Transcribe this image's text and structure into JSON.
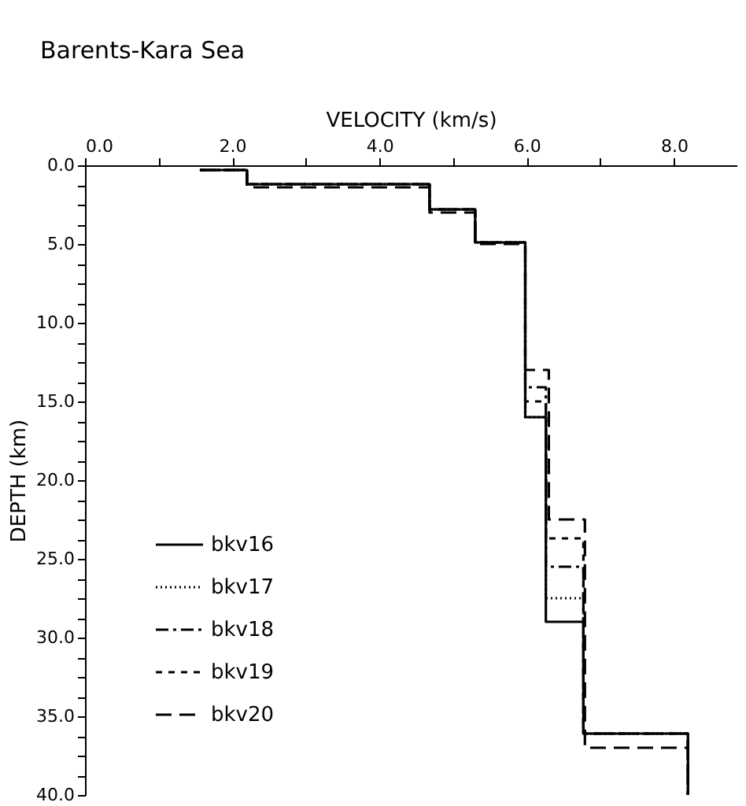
{
  "chart_data": {
    "type": "line",
    "title": "Barents-Kara Sea",
    "xlabel": "VELOCITY (km/s)",
    "ylabel": "DEPTH (km)",
    "xlim": [
      0,
      8.85
    ],
    "ylim": [
      40,
      0
    ],
    "xticks": [
      {
        "value": 0,
        "label": "0.0"
      },
      {
        "value": 1,
        "label": null
      },
      {
        "value": 2,
        "label": "2.0"
      },
      {
        "value": 3,
        "label": null
      },
      {
        "value": 4,
        "label": "4.0"
      },
      {
        "value": 5,
        "label": null
      },
      {
        "value": 6,
        "label": "6.0"
      },
      {
        "value": 7,
        "label": null
      },
      {
        "value": 8,
        "label": "8.0"
      }
    ],
    "yticks": [
      {
        "value": 0,
        "label": "0.0"
      },
      {
        "value": 1.25,
        "label": null
      },
      {
        "value": 2.5,
        "label": null
      },
      {
        "value": 3.75,
        "label": null
      },
      {
        "value": 5,
        "label": "5.0"
      },
      {
        "value": 6.25,
        "label": null
      },
      {
        "value": 7.5,
        "label": null
      },
      {
        "value": 8.75,
        "label": null
      },
      {
        "value": 10,
        "label": "10.0"
      },
      {
        "value": 11.25,
        "label": null
      },
      {
        "value": 12.5,
        "label": null
      },
      {
        "value": 13.75,
        "label": null
      },
      {
        "value": 15,
        "label": "15.0"
      },
      {
        "value": 16.25,
        "label": null
      },
      {
        "value": 17.5,
        "label": null
      },
      {
        "value": 18.75,
        "label": null
      },
      {
        "value": 20,
        "label": "20.0"
      },
      {
        "value": 21.25,
        "label": null
      },
      {
        "value": 22.5,
        "label": null
      },
      {
        "value": 23.75,
        "label": null
      },
      {
        "value": 25,
        "label": "25.0"
      },
      {
        "value": 26.25,
        "label": null
      },
      {
        "value": 27.5,
        "label": null
      },
      {
        "value": 28.75,
        "label": null
      },
      {
        "value": 30,
        "label": "30.0"
      },
      {
        "value": 31.25,
        "label": null
      },
      {
        "value": 32.5,
        "label": null
      },
      {
        "value": 33.75,
        "label": null
      },
      {
        "value": 35,
        "label": "35.0"
      },
      {
        "value": 36.25,
        "label": null
      },
      {
        "value": 37.5,
        "label": null
      },
      {
        "value": 38.75,
        "label": null
      },
      {
        "value": 40,
        "label": "40.0"
      }
    ],
    "grid": false,
    "legend": "bottom left",
    "marker": "none",
    "series": [
      {
        "name": "bkv16",
        "color": "#000000",
        "line_style": "solid",
        "x": [
          1.56,
          2.2,
          2.2,
          4.68,
          4.68,
          5.3,
          5.3,
          5.98,
          5.98,
          6.26,
          6.26,
          6.77,
          6.77,
          8.19,
          8.19
        ],
        "values": [
          0.3,
          0.3,
          1.2,
          1.2,
          2.8,
          2.8,
          4.9,
          4.9,
          16.0,
          16.0,
          29.0,
          29.0,
          36.1,
          36.1,
          40
        ]
      },
      {
        "name": "bkv17",
        "color": "#000000",
        "line_style": "dotted",
        "x": [
          1.56,
          2.2,
          2.2,
          4.68,
          4.68,
          5.3,
          5.3,
          5.98,
          5.98,
          6.26,
          6.26,
          6.77,
          6.77,
          8.19,
          8.19
        ],
        "values": [
          0.3,
          0.3,
          1.2,
          1.2,
          2.8,
          2.8,
          4.9,
          4.9,
          16.0,
          16.0,
          27.5,
          27.5,
          36.1,
          36.1,
          40
        ]
      },
      {
        "name": "bkv18",
        "color": "#000000",
        "line_style": "dashdot",
        "x": [
          1.56,
          2.2,
          2.2,
          4.68,
          4.68,
          5.3,
          5.3,
          5.98,
          5.98,
          6.26,
          6.26,
          6.77,
          6.77,
          8.19,
          8.19
        ],
        "values": [
          0.3,
          0.3,
          1.2,
          1.2,
          2.8,
          2.8,
          4.9,
          4.9,
          14.1,
          14.1,
          25.5,
          25.5,
          36.1,
          36.1,
          40
        ]
      },
      {
        "name": "bkv19",
        "color": "#000000",
        "line_style": "dashed",
        "x": [
          1.56,
          2.2,
          2.2,
          4.68,
          4.68,
          5.3,
          5.3,
          5.98,
          5.98,
          6.26,
          6.26,
          6.77,
          6.77,
          8.19,
          8.19
        ],
        "values": [
          0.3,
          0.3,
          1.2,
          1.2,
          2.8,
          2.8,
          4.9,
          4.9,
          15.0,
          15.0,
          23.7,
          23.7,
          36.1,
          36.1,
          40
        ]
      },
      {
        "name": "bkv20",
        "color": "#000000",
        "line_style": "longdash",
        "x": [
          1.56,
          2.2,
          2.2,
          4.68,
          4.68,
          5.3,
          5.3,
          5.98,
          5.98,
          6.3,
          6.3,
          6.79,
          6.79,
          8.19,
          8.19
        ],
        "values": [
          0.3,
          0.3,
          1.4,
          1.4,
          3.0,
          3.0,
          5.0,
          5.0,
          13.0,
          13.0,
          22.5,
          22.5,
          37.0,
          37.0,
          40
        ]
      }
    ]
  }
}
